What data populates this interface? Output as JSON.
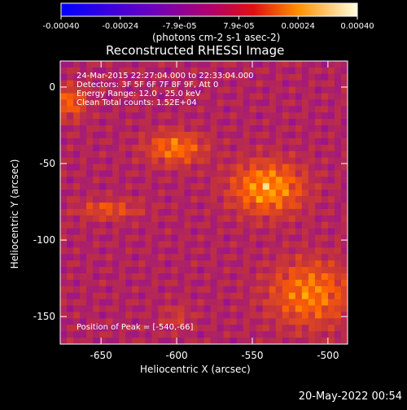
{
  "colorbar": {
    "ticks": [
      "-0.00040",
      "-0.00024",
      "-7.9e-05",
      "7.9e-05",
      "0.00024",
      "0.00040"
    ],
    "units": "(photons cm-2 s-1 asec-2)",
    "range": [
      -0.0004,
      0.0004
    ]
  },
  "chart_data": {
    "type": "heatmap",
    "title": "Reconstructed RHESSI Image",
    "xlabel": "Heliocentric X (arcsec)",
    "ylabel": "Heliocentric Y (arcsec)",
    "xlim": [
      -677,
      -487
    ],
    "ylim": [
      -168,
      17
    ],
    "xticks": [
      "-650",
      "-600",
      "-550",
      "-500"
    ],
    "yticks": [
      "0",
      "-50",
      "-100",
      "-150"
    ],
    "xtick_values": [
      -650,
      -600,
      -550,
      -500
    ],
    "ytick_values": [
      0,
      -50,
      -100,
      -150
    ],
    "colormap": [
      "#0000ff",
      "#8000c0",
      "#c03040",
      "#ff6000",
      "#ffc000",
      "#ffffff"
    ],
    "peak": [
      -540,
      -66
    ],
    "sources": [
      {
        "x": -540,
        "y": -66,
        "sx": 22,
        "sy": 16,
        "amp": 0.0004
      },
      {
        "x": -601,
        "y": -40,
        "sx": 18,
        "sy": 10,
        "amp": 0.0003
      },
      {
        "x": -512,
        "y": -135,
        "sx": 25,
        "sy": 20,
        "amp": 0.00032
      },
      {
        "x": -670,
        "y": -10,
        "sx": 10,
        "sy": 10,
        "amp": 0.00025
      },
      {
        "x": -645,
        "y": -80,
        "sx": 20,
        "sy": 6,
        "amp": 0.0002
      },
      {
        "x": -600,
        "y": -150,
        "sx": 10,
        "sy": 8,
        "amp": 0.0001
      }
    ]
  },
  "overlay": {
    "line1": "24-Mar-2015 22:27:04.000 to 22:33:04.000",
    "line2": "Detectors: 3F 5F 6F 7F 8F 9F, Att 0",
    "line3": "Energy Range: 12.0 - 25.0 keV",
    "line4": "Clean     Total counts: 1.52E+04",
    "peak_label": "Position of Peak = [-540,-66]"
  },
  "footer": {
    "date": "20-May-2022 00:54"
  }
}
